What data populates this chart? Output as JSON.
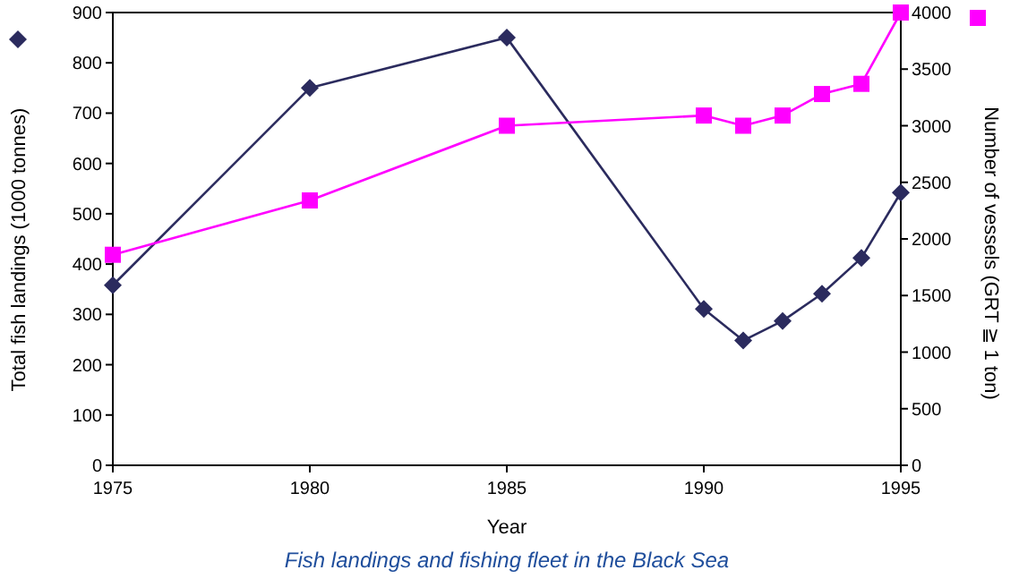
{
  "chart_data": {
    "type": "line",
    "title": "Fish landings and fishing fleet in the Black Sea",
    "xlabel": "Year",
    "ylabel": "Total fish landings (1000 tonnes)",
    "y2label": "Number of vessels (GRT ≧ 1 ton)",
    "xlim": [
      1975,
      1995
    ],
    "xticks": [
      1975,
      1980,
      1985,
      1990,
      1995
    ],
    "ylim": [
      0,
      900
    ],
    "yticks": [
      0,
      100,
      200,
      300,
      400,
      500,
      600,
      700,
      800,
      900
    ],
    "y2lim": [
      0,
      4000
    ],
    "y2ticks": [
      0,
      500,
      1000,
      1500,
      2000,
      2500,
      3000,
      3500,
      4000
    ],
    "grid": false,
    "series": [
      {
        "color": "#2b2b5e",
        "marker": "diamond",
        "x": [
          1975,
          1980,
          1985,
          1990,
          1991,
          1992,
          1993,
          1994,
          1995
        ],
        "values": [
          358,
          750,
          850,
          311,
          248,
          287,
          341,
          412,
          542
        ]
      },
      {
        "color": "#ff00ff",
        "marker": "square",
        "axis": "y2",
        "x": [
          1975,
          1980,
          1985,
          1990,
          1991,
          1992,
          1993,
          1994,
          1995
        ],
        "values": [
          1860,
          2340,
          3000,
          3090,
          3000,
          3090,
          3280,
          3370,
          4000
        ]
      }
    ]
  }
}
